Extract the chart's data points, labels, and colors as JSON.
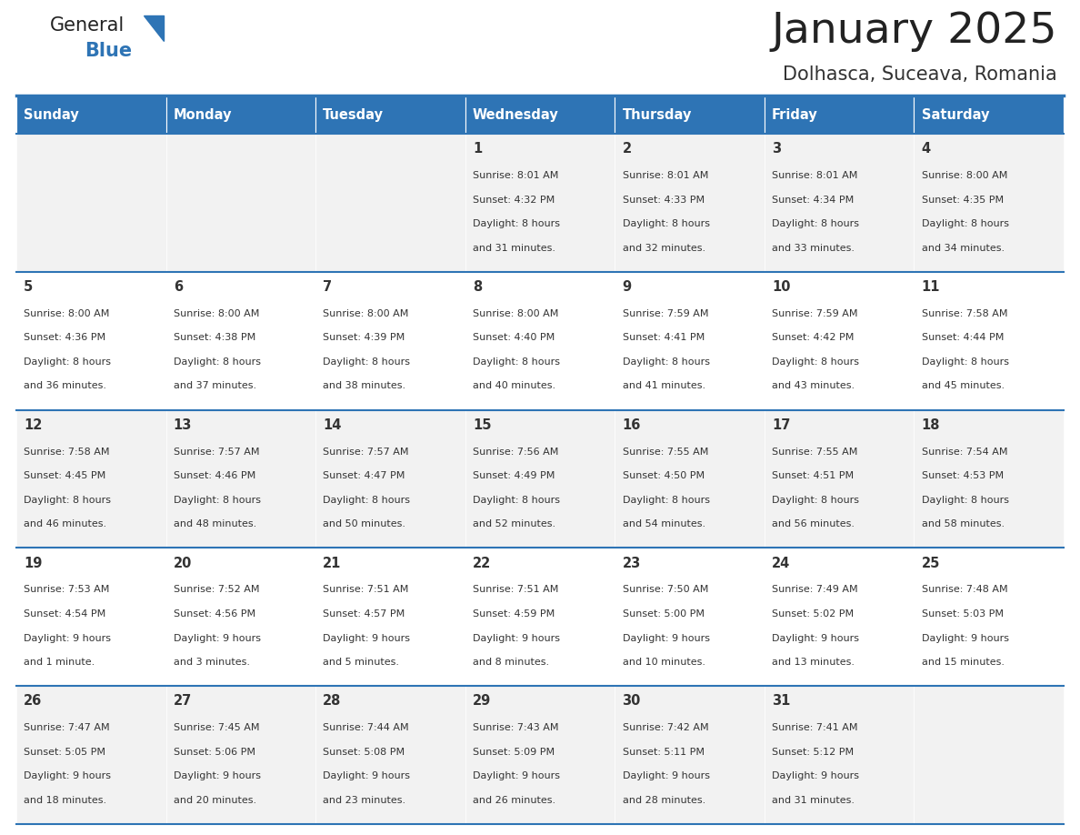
{
  "title": "January 2025",
  "subtitle": "Dolhasca, Suceava, Romania",
  "header_bg": "#2E74B5",
  "header_text": "#FFFFFF",
  "row_bg_odd": "#F2F2F2",
  "row_bg_even": "#FFFFFF",
  "border_color": "#2E74B5",
  "day_headers": [
    "Sunday",
    "Monday",
    "Tuesday",
    "Wednesday",
    "Thursday",
    "Friday",
    "Saturday"
  ],
  "title_color": "#222222",
  "subtitle_color": "#333333",
  "cell_text_color": "#333333",
  "day_number_color": "#333333",
  "calendar": [
    [
      "",
      "",
      "",
      "1",
      "2",
      "3",
      "4"
    ],
    [
      "5",
      "6",
      "7",
      "8",
      "9",
      "10",
      "11"
    ],
    [
      "12",
      "13",
      "14",
      "15",
      "16",
      "17",
      "18"
    ],
    [
      "19",
      "20",
      "21",
      "22",
      "23",
      "24",
      "25"
    ],
    [
      "26",
      "27",
      "28",
      "29",
      "30",
      "31",
      ""
    ]
  ],
  "cell_data": {
    "1": {
      "sunrise": "8:01 AM",
      "sunset": "4:32 PM",
      "daylight_h": "8 hours",
      "daylight_m": "and 31 minutes."
    },
    "2": {
      "sunrise": "8:01 AM",
      "sunset": "4:33 PM",
      "daylight_h": "8 hours",
      "daylight_m": "and 32 minutes."
    },
    "3": {
      "sunrise": "8:01 AM",
      "sunset": "4:34 PM",
      "daylight_h": "8 hours",
      "daylight_m": "and 33 minutes."
    },
    "4": {
      "sunrise": "8:00 AM",
      "sunset": "4:35 PM",
      "daylight_h": "8 hours",
      "daylight_m": "and 34 minutes."
    },
    "5": {
      "sunrise": "8:00 AM",
      "sunset": "4:36 PM",
      "daylight_h": "8 hours",
      "daylight_m": "and 36 minutes."
    },
    "6": {
      "sunrise": "8:00 AM",
      "sunset": "4:38 PM",
      "daylight_h": "8 hours",
      "daylight_m": "and 37 minutes."
    },
    "7": {
      "sunrise": "8:00 AM",
      "sunset": "4:39 PM",
      "daylight_h": "8 hours",
      "daylight_m": "and 38 minutes."
    },
    "8": {
      "sunrise": "8:00 AM",
      "sunset": "4:40 PM",
      "daylight_h": "8 hours",
      "daylight_m": "and 40 minutes."
    },
    "9": {
      "sunrise": "7:59 AM",
      "sunset": "4:41 PM",
      "daylight_h": "8 hours",
      "daylight_m": "and 41 minutes."
    },
    "10": {
      "sunrise": "7:59 AM",
      "sunset": "4:42 PM",
      "daylight_h": "8 hours",
      "daylight_m": "and 43 minutes."
    },
    "11": {
      "sunrise": "7:58 AM",
      "sunset": "4:44 PM",
      "daylight_h": "8 hours",
      "daylight_m": "and 45 minutes."
    },
    "12": {
      "sunrise": "7:58 AM",
      "sunset": "4:45 PM",
      "daylight_h": "8 hours",
      "daylight_m": "and 46 minutes."
    },
    "13": {
      "sunrise": "7:57 AM",
      "sunset": "4:46 PM",
      "daylight_h": "8 hours",
      "daylight_m": "and 48 minutes."
    },
    "14": {
      "sunrise": "7:57 AM",
      "sunset": "4:47 PM",
      "daylight_h": "8 hours",
      "daylight_m": "and 50 minutes."
    },
    "15": {
      "sunrise": "7:56 AM",
      "sunset": "4:49 PM",
      "daylight_h": "8 hours",
      "daylight_m": "and 52 minutes."
    },
    "16": {
      "sunrise": "7:55 AM",
      "sunset": "4:50 PM",
      "daylight_h": "8 hours",
      "daylight_m": "and 54 minutes."
    },
    "17": {
      "sunrise": "7:55 AM",
      "sunset": "4:51 PM",
      "daylight_h": "8 hours",
      "daylight_m": "and 56 minutes."
    },
    "18": {
      "sunrise": "7:54 AM",
      "sunset": "4:53 PM",
      "daylight_h": "8 hours",
      "daylight_m": "and 58 minutes."
    },
    "19": {
      "sunrise": "7:53 AM",
      "sunset": "4:54 PM",
      "daylight_h": "9 hours",
      "daylight_m": "and 1 minute."
    },
    "20": {
      "sunrise": "7:52 AM",
      "sunset": "4:56 PM",
      "daylight_h": "9 hours",
      "daylight_m": "and 3 minutes."
    },
    "21": {
      "sunrise": "7:51 AM",
      "sunset": "4:57 PM",
      "daylight_h": "9 hours",
      "daylight_m": "and 5 minutes."
    },
    "22": {
      "sunrise": "7:51 AM",
      "sunset": "4:59 PM",
      "daylight_h": "9 hours",
      "daylight_m": "and 8 minutes."
    },
    "23": {
      "sunrise": "7:50 AM",
      "sunset": "5:00 PM",
      "daylight_h": "9 hours",
      "daylight_m": "and 10 minutes."
    },
    "24": {
      "sunrise": "7:49 AM",
      "sunset": "5:02 PM",
      "daylight_h": "9 hours",
      "daylight_m": "and 13 minutes."
    },
    "25": {
      "sunrise": "7:48 AM",
      "sunset": "5:03 PM",
      "daylight_h": "9 hours",
      "daylight_m": "and 15 minutes."
    },
    "26": {
      "sunrise": "7:47 AM",
      "sunset": "5:05 PM",
      "daylight_h": "9 hours",
      "daylight_m": "and 18 minutes."
    },
    "27": {
      "sunrise": "7:45 AM",
      "sunset": "5:06 PM",
      "daylight_h": "9 hours",
      "daylight_m": "and 20 minutes."
    },
    "28": {
      "sunrise": "7:44 AM",
      "sunset": "5:08 PM",
      "daylight_h": "9 hours",
      "daylight_m": "and 23 minutes."
    },
    "29": {
      "sunrise": "7:43 AM",
      "sunset": "5:09 PM",
      "daylight_h": "9 hours",
      "daylight_m": "and 26 minutes."
    },
    "30": {
      "sunrise": "7:42 AM",
      "sunset": "5:11 PM",
      "daylight_h": "9 hours",
      "daylight_m": "and 28 minutes."
    },
    "31": {
      "sunrise": "7:41 AM",
      "sunset": "5:12 PM",
      "daylight_h": "9 hours",
      "daylight_m": "and 31 minutes."
    }
  },
  "logo_general_color": "#222222",
  "logo_blue_color": "#2E74B5",
  "logo_triangle_color": "#2E74B5"
}
